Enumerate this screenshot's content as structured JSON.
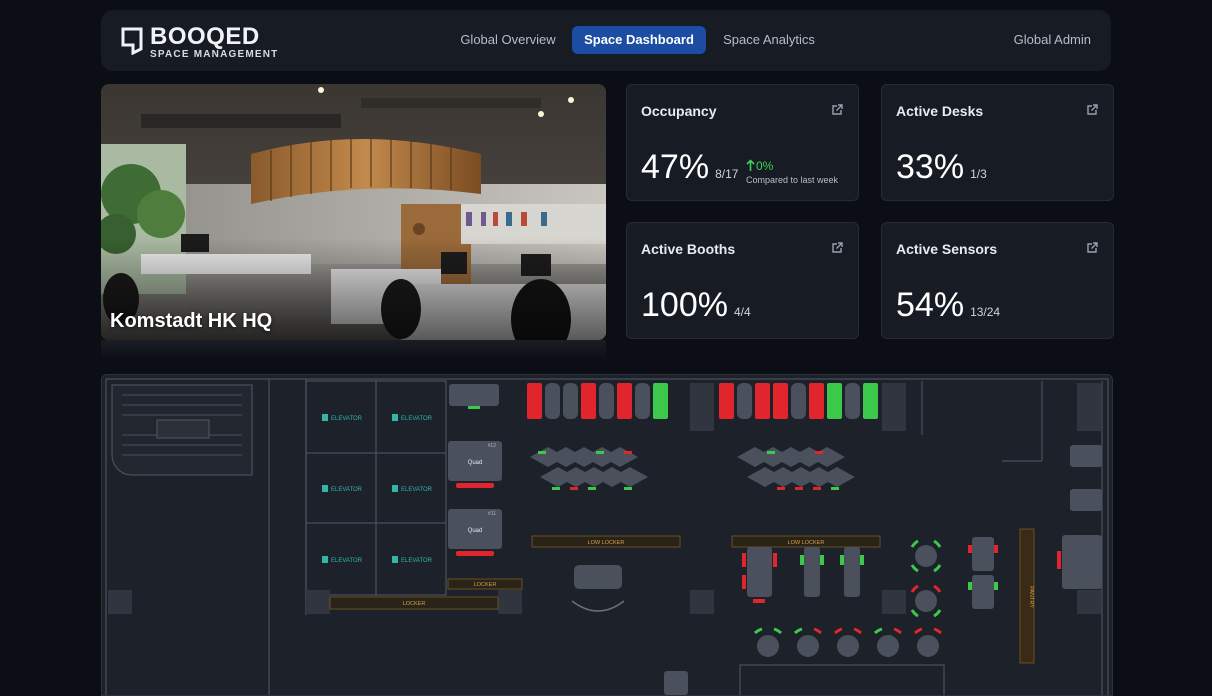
{
  "brand": {
    "name": "BOOQED",
    "tagline": "SPACE MANAGEMENT"
  },
  "nav": {
    "tabs": [
      {
        "label": "Global Overview",
        "active": false
      },
      {
        "label": "Space Dashboard",
        "active": true
      },
      {
        "label": "Space Analytics",
        "active": false
      }
    ],
    "user": "Global Admin"
  },
  "hero": {
    "title": "Komstadt HK HQ"
  },
  "stats": {
    "occupancy": {
      "title": "Occupancy",
      "value": "47%",
      "fraction": "8/17",
      "trend": "0%",
      "trend_note": "Compared to last week"
    },
    "active_desks": {
      "title": "Active Desks",
      "value": "33%",
      "fraction": "1/3"
    },
    "active_booths": {
      "title": "Active Booths",
      "value": "100%",
      "fraction": "4/4"
    },
    "active_sensors": {
      "title": "Active Sensors",
      "value": "54%",
      "fraction": "13/24"
    }
  },
  "floorplan": {
    "elevator_label": "ELEVATOR",
    "quad_label": "Quad",
    "quad_ids": [
      "#12",
      "#11"
    ],
    "low_locker_label": "LOW LOCKER",
    "locker_label": "LOCKER",
    "pantry_label": "PANTRY",
    "booth_row_1": [
      "occupied",
      "free",
      "free",
      "occupied",
      "free",
      "occupied",
      "free",
      "available"
    ],
    "booth_row_2": [
      "occupied",
      "free",
      "occupied",
      "occupied",
      "free",
      "occupied",
      "available",
      "free",
      "available"
    ]
  },
  "colors": {
    "accent": "#1c4da3",
    "occupied": "#e0262c",
    "available": "#3cc84a",
    "free": "#4a505c",
    "trend_up": "#3ecf5a"
  }
}
